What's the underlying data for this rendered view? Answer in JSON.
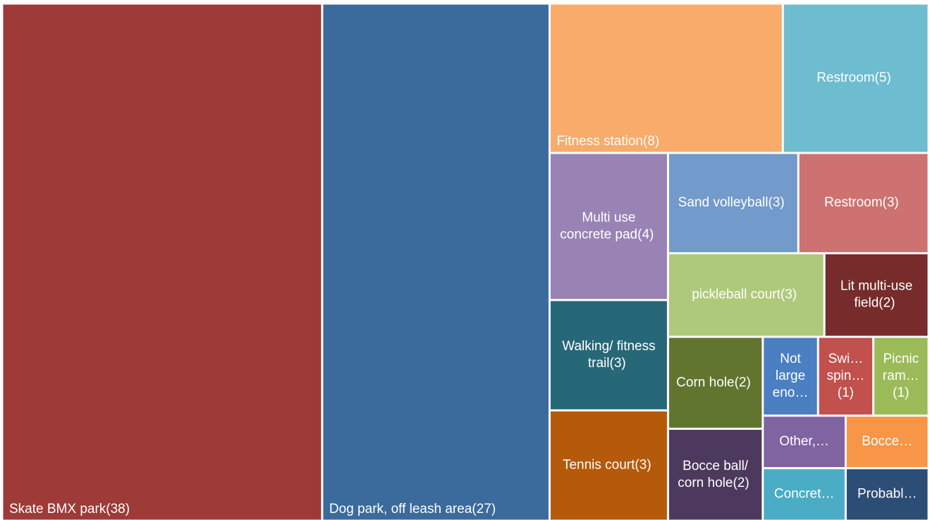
{
  "chart_data": {
    "type": "treemap",
    "categories": [
      "Skate BMX park",
      "Dog park, off leash area",
      "Fitness station",
      "Restroom",
      "Multi use concrete pad",
      "Sand volleyball",
      "Restroom",
      "Walking/ fitness trail",
      "pickleball court",
      "Lit multi-use field",
      "Tennis court",
      "Corn hole",
      "Bocce ball/ corn hole",
      "Not large eno…",
      "Swi… spin…",
      "Picnic ram…",
      "Other,…",
      "Bocce…",
      "Concret…",
      "Probabl…"
    ],
    "values": [
      38,
      27,
      8,
      5,
      4,
      3,
      3,
      3,
      3,
      2,
      3,
      2,
      2,
      1,
      1,
      1,
      1,
      1,
      1,
      1
    ],
    "value_labels": [
      "(38)",
      "(27)",
      "(8)",
      "(5)",
      "(4)",
      "(3)",
      "(3)",
      "(3)",
      "(3)",
      "(2)",
      "(3)",
      "(2)",
      "(2)",
      null,
      "(1)",
      "(1)",
      null,
      null,
      null,
      null
    ],
    "colors": [
      "#9e3a38",
      "#3b6a9c",
      "#f8ab6b",
      "#6dbcd0",
      "#9983b5",
      "#729acb",
      "#cd7270",
      "#276878",
      "#afc97a",
      "#772b2a",
      "#b55a0a",
      "#61752f",
      "#4c395d",
      "#4a7fc1",
      "#c2504d",
      "#9bbb59",
      "#8063a1",
      "#f79646",
      "#4aacc5",
      "#2c4d75"
    ]
  }
}
